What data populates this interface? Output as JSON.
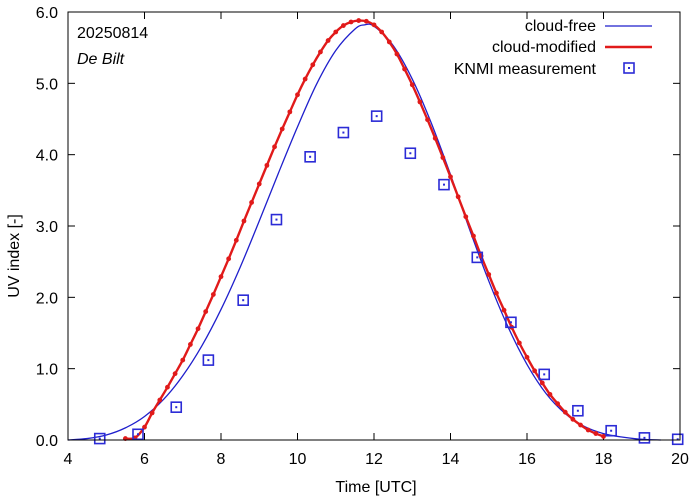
{
  "chart_data": {
    "type": "line",
    "xlabel": "Time  [UTC]",
    "ylabel": "UV index  [-]",
    "xlim": [
      4,
      20
    ],
    "ylim": [
      0,
      6
    ],
    "xticks": [
      4,
      6,
      8,
      10,
      12,
      14,
      16,
      18,
      20
    ],
    "xtick_labels": [
      "4",
      "6",
      "8",
      "10",
      "12",
      "14",
      "16",
      "18",
      "20"
    ],
    "yticks": [
      0,
      1,
      2,
      3,
      4,
      5,
      6
    ],
    "ytick_labels": [
      "0.0",
      "1.0",
      "2.0",
      "3.0",
      "4.0",
      "5.0",
      "6.0"
    ],
    "annotations": {
      "date": "20250814",
      "location": "De Bilt"
    },
    "legend_position": "top-right",
    "colors": {
      "cloud_free": "#1f1fcc",
      "cloud_modified": "#e11a1a",
      "knmi": "#2b2bd6"
    },
    "series": [
      {
        "name": "cloud-free",
        "style": "line",
        "x": [
          4.0,
          4.5,
          5.0,
          5.5,
          6.0,
          6.5,
          7.0,
          7.5,
          8.0,
          8.5,
          9.0,
          9.5,
          10.0,
          10.5,
          11.0,
          11.5,
          11.75,
          12.0,
          12.5,
          13.0,
          13.5,
          14.0,
          14.5,
          15.0,
          15.5,
          16.0,
          16.5,
          17.0,
          17.5,
          18.0,
          18.5,
          19.0,
          19.5
        ],
        "y": [
          0.0,
          0.02,
          0.07,
          0.17,
          0.33,
          0.57,
          0.9,
          1.32,
          1.83,
          2.42,
          3.07,
          3.74,
          4.39,
          4.99,
          5.46,
          5.76,
          5.82,
          5.8,
          5.53,
          5.06,
          4.44,
          3.72,
          2.95,
          2.23,
          1.59,
          1.06,
          0.65,
          0.37,
          0.19,
          0.09,
          0.04,
          0.01,
          0.0
        ]
      },
      {
        "name": "cloud-modified",
        "style": "line-with-dots",
        "x": [
          5.5,
          5.75,
          6.0,
          6.2,
          6.4,
          6.6,
          6.8,
          7.0,
          7.2,
          7.4,
          7.6,
          7.8,
          8.0,
          8.2,
          8.4,
          8.6,
          8.8,
          9.0,
          9.2,
          9.4,
          9.6,
          9.8,
          10.0,
          10.2,
          10.4,
          10.6,
          10.8,
          11.0,
          11.2,
          11.4,
          11.6,
          11.8,
          12.0,
          12.2,
          12.4,
          12.6,
          12.8,
          13.0,
          13.2,
          13.4,
          13.6,
          13.8,
          14.0,
          14.2,
          14.4,
          14.6,
          14.8,
          15.0,
          15.2,
          15.4,
          15.6,
          15.8,
          16.0,
          16.2,
          16.4,
          16.6,
          16.8,
          17.0,
          17.2,
          17.4,
          17.6,
          17.8,
          18.0
        ],
        "y": [
          0.02,
          0.03,
          0.18,
          0.38,
          0.56,
          0.74,
          0.93,
          1.12,
          1.34,
          1.56,
          1.8,
          2.04,
          2.29,
          2.54,
          2.8,
          3.07,
          3.33,
          3.59,
          3.85,
          4.11,
          4.36,
          4.6,
          4.84,
          5.06,
          5.26,
          5.44,
          5.6,
          5.72,
          5.81,
          5.86,
          5.88,
          5.87,
          5.82,
          5.72,
          5.58,
          5.41,
          5.2,
          4.98,
          4.74,
          4.49,
          4.23,
          3.96,
          3.69,
          3.41,
          3.13,
          2.86,
          2.58,
          2.32,
          2.06,
          1.82,
          1.58,
          1.36,
          1.16,
          0.97,
          0.8,
          0.64,
          0.51,
          0.39,
          0.29,
          0.21,
          0.14,
          0.09,
          0.05
        ]
      },
      {
        "name": "KNMI measurement",
        "style": "markers",
        "x": [
          4.83,
          5.83,
          6.83,
          7.67,
          8.58,
          9.45,
          10.33,
          11.2,
          12.07,
          12.95,
          13.83,
          14.7,
          15.58,
          16.45,
          17.33,
          18.2,
          19.07,
          19.94
        ],
        "y": [
          0.02,
          0.08,
          0.46,
          1.12,
          1.96,
          3.09,
          3.97,
          4.31,
          4.54,
          4.02,
          3.58,
          2.56,
          1.65,
          0.92,
          0.41,
          0.13,
          0.03,
          0.01
        ]
      }
    ]
  }
}
